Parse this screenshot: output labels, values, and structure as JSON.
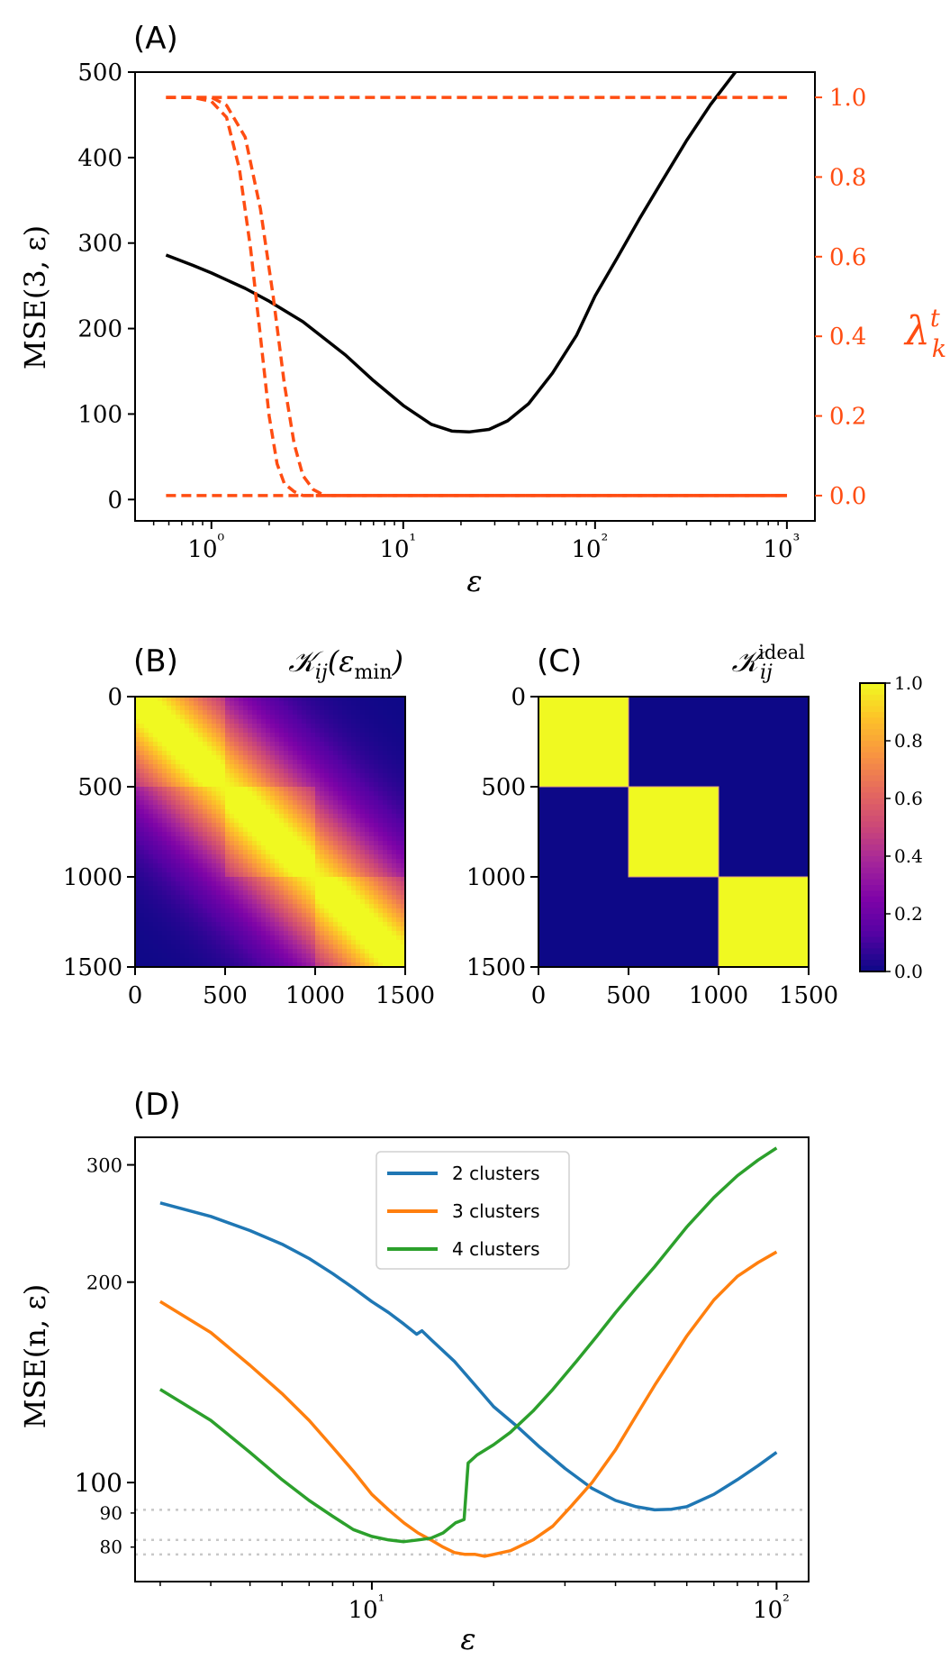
{
  "figure": {
    "colors": {
      "black": "#000000",
      "orange": "#ff4d12",
      "blue": "#1f77b4",
      "orange2": "#ff7f0e",
      "green": "#2ca02c",
      "grid": "#c8c8c8",
      "plasma_low": "#0d0887",
      "plasma_high": "#f0f921"
    }
  },
  "chart_data": [
    {
      "panel": "(A)",
      "type": "line",
      "xscale": "log",
      "xlabel": "ε",
      "ylabel": "MSE(3, ε)",
      "ylabel_right": "λ_k^t",
      "xlim": [
        0.4,
        1400
      ],
      "ylim": [
        -25,
        500
      ],
      "ylim_right": [
        -0.0635,
        1.0635
      ],
      "xticks": [
        {
          "value": 1,
          "label": "10⁰"
        },
        {
          "value": 10,
          "label": "10¹"
        },
        {
          "value": 100,
          "label": "10²"
        },
        {
          "value": 1000,
          "label": "10³"
        }
      ],
      "yticks": [
        0,
        100,
        200,
        300,
        400,
        500
      ],
      "yticks_right": [
        "0.0",
        "0.2",
        "0.4",
        "0.6",
        "0.8",
        "1.0"
      ],
      "series": [
        {
          "style": "solid",
          "color": "#000000",
          "axis": "left",
          "x": [
            0.58,
            0.8,
            1.0,
            1.5,
            2,
            3,
            5,
            7,
            10,
            14,
            18,
            22,
            28,
            35,
            45,
            60,
            80,
            100,
            130,
            170,
            220,
            300,
            400,
            560
          ],
          "y": [
            286,
            274,
            265,
            247,
            232,
            208,
            169,
            139,
            110,
            88,
            80,
            79,
            82,
            92,
            112,
            148,
            192,
            238,
            282,
            328,
            370,
            420,
            462,
            505
          ]
        },
        {
          "style": "dashed",
          "color": "#ff4d12",
          "axis": "right",
          "x": [
            0.58,
            1000
          ],
          "y": [
            1.0,
            1.0
          ]
        },
        {
          "style": "dashed",
          "color": "#ff4d12",
          "axis": "right",
          "x": [
            0.58,
            0.8,
            1.0,
            1.2,
            1.4,
            1.6,
            1.8,
            2.0,
            2.2,
            2.4,
            2.7,
            3.0,
            1000
          ],
          "y": [
            1.0,
            1.0,
            0.99,
            0.95,
            0.82,
            0.62,
            0.4,
            0.2,
            0.08,
            0.03,
            0.01,
            0.0,
            0.0
          ]
        },
        {
          "style": "dashed",
          "color": "#ff4d12",
          "axis": "right",
          "x": [
            0.58,
            0.8,
            1.0,
            1.2,
            1.5,
            1.8,
            2.1,
            2.4,
            2.7,
            3.0,
            3.4,
            3.9,
            1000
          ],
          "y": [
            1.0,
            1.0,
            1.0,
            0.98,
            0.9,
            0.72,
            0.5,
            0.28,
            0.13,
            0.05,
            0.015,
            0.0,
            0.0
          ]
        },
        {
          "style": "dashed",
          "color": "#ff4d12",
          "axis": "right",
          "x": [
            0.58,
            3.5
          ],
          "y": [
            0.0,
            0.0
          ]
        },
        {
          "style": "solid",
          "color": "#ff4d12",
          "axis": "right",
          "x": [
            3.5,
            1000
          ],
          "y": [
            0.0,
            0.0
          ]
        }
      ]
    },
    {
      "panel": "(B)",
      "type": "heatmap",
      "title": "K_ij(ε_min)",
      "xlim": [
        0,
        1500
      ],
      "ylim": [
        1500,
        0
      ],
      "xticks": [
        0,
        500,
        1000,
        1500
      ],
      "yticks": [
        0,
        500,
        1000,
        1500
      ],
      "blocks": [
        500,
        1000
      ],
      "colormap": "plasma"
    },
    {
      "panel": "(C)",
      "type": "heatmap",
      "title": "K_ij^ideal",
      "xlim": [
        0,
        1500
      ],
      "ylim": [
        1500,
        0
      ],
      "xticks": [
        0,
        500,
        1000,
        1500
      ],
      "yticks": [
        0,
        500,
        1000,
        1500
      ],
      "blocks": [
        [
          0,
          500
        ],
        [
          500,
          1000
        ],
        [
          1000,
          1500
        ]
      ],
      "colormap": "plasma",
      "colorbar": {
        "range": [
          0,
          1
        ],
        "ticks": [
          "0.0",
          "0.2",
          "0.4",
          "0.6",
          "0.8",
          "1.0"
        ]
      }
    },
    {
      "panel": "(D)",
      "type": "line",
      "xscale": "log",
      "yscale": "log",
      "xlabel": "ε",
      "ylabel": "MSE(n, ε)",
      "xlim": [
        2.6,
        120
      ],
      "ylim": [
        71,
        330
      ],
      "xticks": [
        {
          "value": 10,
          "label": "10¹"
        },
        {
          "value": 100,
          "label": "10²"
        }
      ],
      "yticks_major": [
        100,
        200,
        300
      ],
      "yticks_minor": [
        80,
        90
      ],
      "hlines": [
        91,
        82,
        78
      ],
      "legend": {
        "placement": "upper center"
      },
      "series": [
        {
          "name": "2 clusters",
          "color": "#1f77b4",
          "x": [
            3,
            4,
            5,
            6,
            7,
            8,
            9,
            10,
            11,
            12,
            12.9,
            13.3,
            14,
            16,
            18,
            20,
            23,
            26,
            30,
            35,
            40,
            45,
            50,
            55,
            60,
            70,
            80,
            90,
            100
          ],
          "y": [
            263,
            251,
            239,
            228,
            217,
            206,
            196,
            187,
            180,
            173,
            167,
            169,
            164,
            152,
            140,
            130,
            121,
            113,
            105,
            98,
            94,
            92,
            91,
            91.2,
            92,
            96,
            101,
            106,
            111
          ]
        },
        {
          "name": "3 clusters",
          "color": "#ff7f0e",
          "x": [
            3,
            4,
            5,
            6,
            7,
            8,
            9,
            10,
            11,
            12,
            13,
            14,
            15,
            16,
            17,
            18,
            19,
            20,
            22,
            25,
            28,
            31,
            35,
            40,
            45,
            50,
            60,
            70,
            80,
            90,
            100
          ],
          "y": [
            187,
            168,
            150,
            136,
            124,
            113,
            104,
            96,
            91,
            87,
            84,
            82,
            80,
            78.5,
            78,
            78,
            77.5,
            78,
            79,
            82,
            86,
            92,
            100,
            112,
            126,
            140,
            166,
            188,
            204,
            214,
            222
          ]
        },
        {
          "name": "4 clusters",
          "color": "#2ca02c",
          "x": [
            3,
            4,
            5,
            6,
            7,
            8,
            9,
            10,
            11,
            12,
            13,
            14,
            15,
            16.1,
            16.9,
            17.3,
            18.2,
            20,
            22,
            25,
            28,
            32,
            36,
            40,
            45,
            50,
            60,
            70,
            80,
            90,
            100
          ],
          "y": [
            138,
            124,
            111,
            101,
            94,
            89,
            85,
            83,
            82,
            81.5,
            82,
            82.5,
            84,
            87,
            88,
            107,
            110,
            114,
            119,
            128,
            138,
            152,
            166,
            180,
            196,
            211,
            242,
            268,
            289,
            305,
            318
          ]
        }
      ]
    }
  ]
}
